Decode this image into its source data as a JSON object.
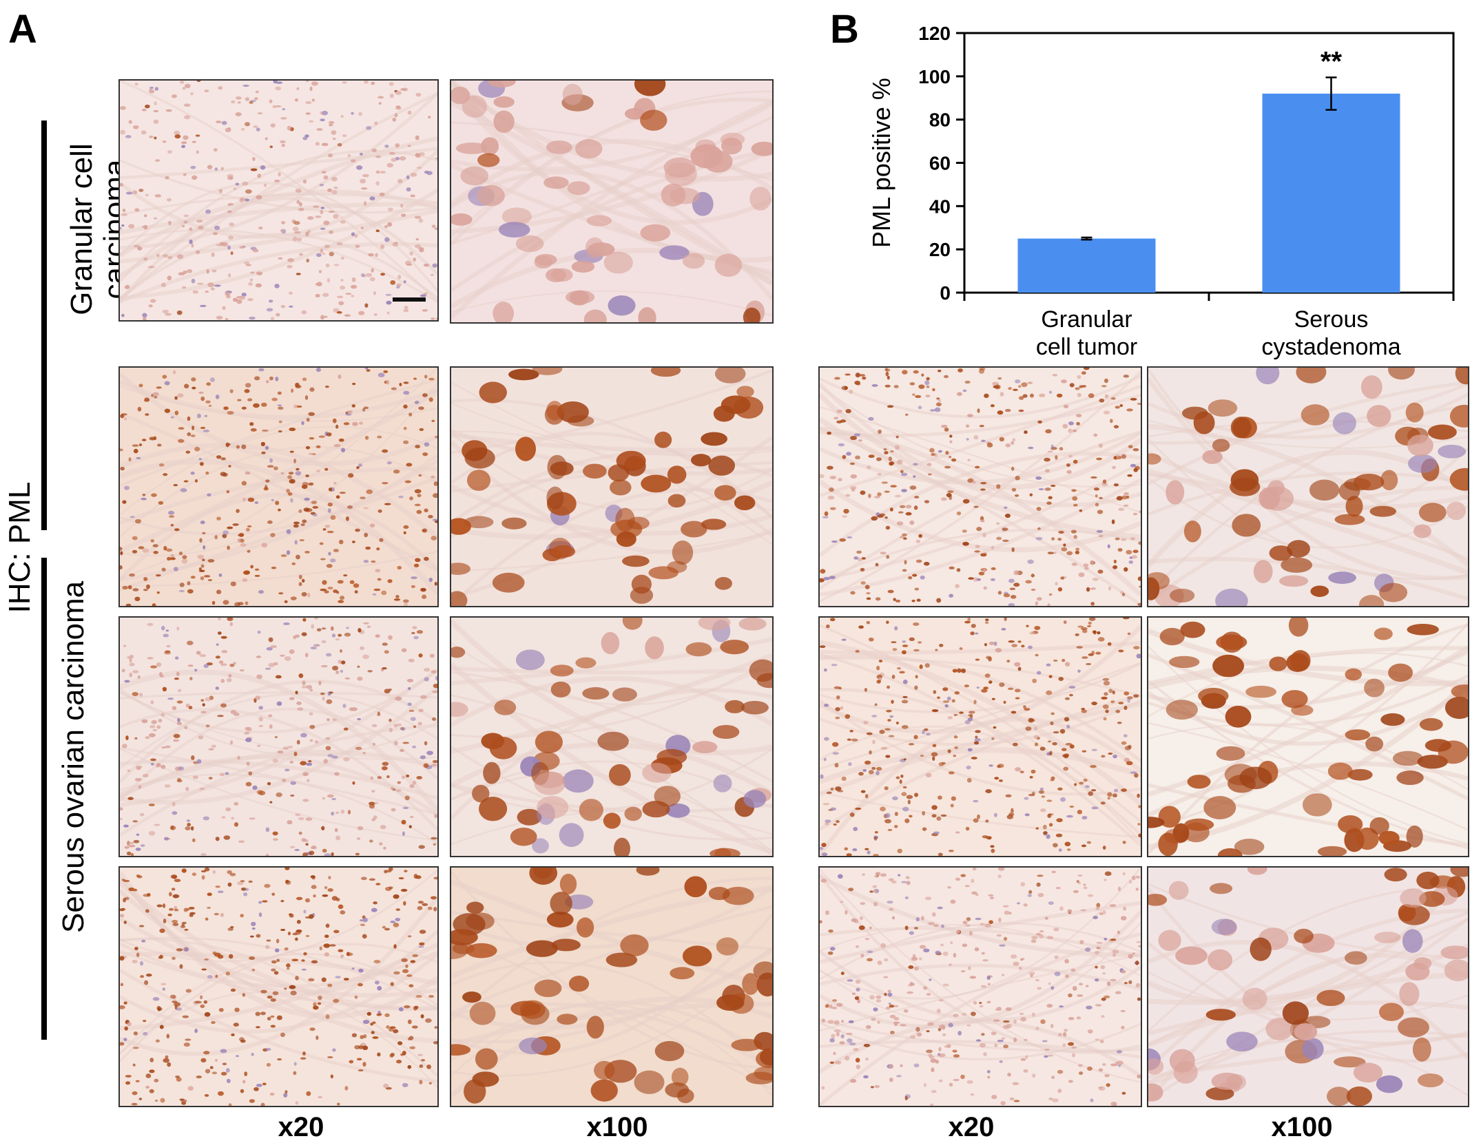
{
  "panels": {
    "a": "A",
    "b": "B"
  },
  "side_labels": {
    "ihc": "IHC: PML",
    "group1_line1": "Granular cell",
    "group1_line2": "carcinoma",
    "group2": "Serous ovarian carcinoma"
  },
  "magnification": {
    "low": "x20",
    "high": "x100"
  },
  "stain_colors": {
    "background_light": "#f7e9e4",
    "weak_nucleus": "#d9a39a",
    "brown_nucleus": "#b5521e",
    "dark_brown_nucleus": "#8c3510",
    "hematoxylin": "#9a84b8"
  },
  "chart_data": {
    "type": "bar",
    "categories": [
      "Granular\ncell tumor",
      "Serous\ncystadenoma"
    ],
    "category_lines": [
      [
        "Granular",
        "cell tumor"
      ],
      [
        "Serous",
        "cystadenoma"
      ]
    ],
    "values": [
      25,
      92
    ],
    "errors": [
      0.5,
      7.5
    ],
    "significance": [
      "",
      "**"
    ],
    "ylabel": "PML positive %",
    "ylim": [
      0,
      120
    ],
    "yticks": [
      0,
      20,
      40,
      60,
      80,
      100,
      120
    ],
    "bar_color": "#4a8ff0",
    "grid": false
  }
}
